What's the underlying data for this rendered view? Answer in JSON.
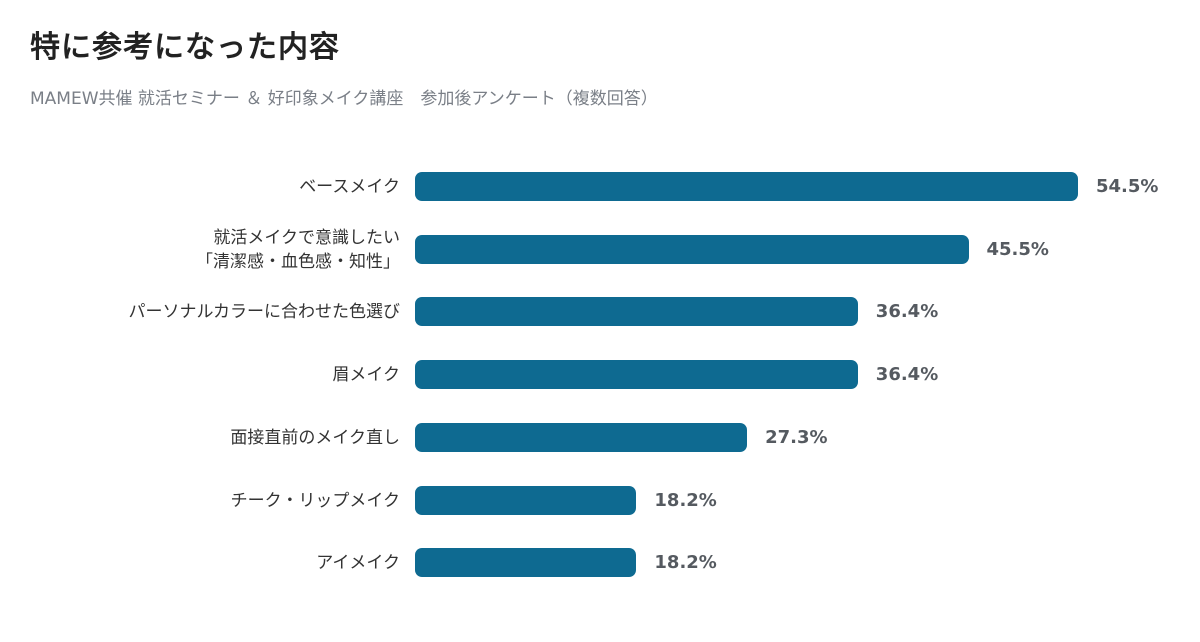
{
  "page": {
    "title": "特に参考になった内容",
    "subtitle": "MAMEW共催 就活セミナー ＆ 好印象メイク講座　参加後アンケート（複数回答）"
  },
  "chart_data": {
    "type": "bar",
    "orientation": "horizontal",
    "title": "特に参考になった内容",
    "subtitle": "MAMEW共催 就活セミナー ＆ 好印象メイク講座　参加後アンケート（複数回答）",
    "categories": [
      [
        "ベースメイク"
      ],
      [
        "就活メイクで意識したい",
        "「清潔感・血色感・知性」"
      ],
      [
        "パーソナルカラーに合わせた色選び"
      ],
      [
        "眉メイク"
      ],
      [
        "面接直前のメイク直し"
      ],
      [
        "チーク・リップメイク"
      ],
      [
        "アイメイク"
      ]
    ],
    "values": [
      54.5,
      45.5,
      36.4,
      36.4,
      27.3,
      18.2,
      18.2
    ],
    "value_labels": [
      "54.5%",
      "45.5%",
      "36.4%",
      "36.4%",
      "27.3%",
      "18.2%",
      "18.2%"
    ],
    "unit": "%",
    "xlim": [
      0,
      60
    ],
    "grid": false,
    "bar_color": "#0e6a91"
  }
}
